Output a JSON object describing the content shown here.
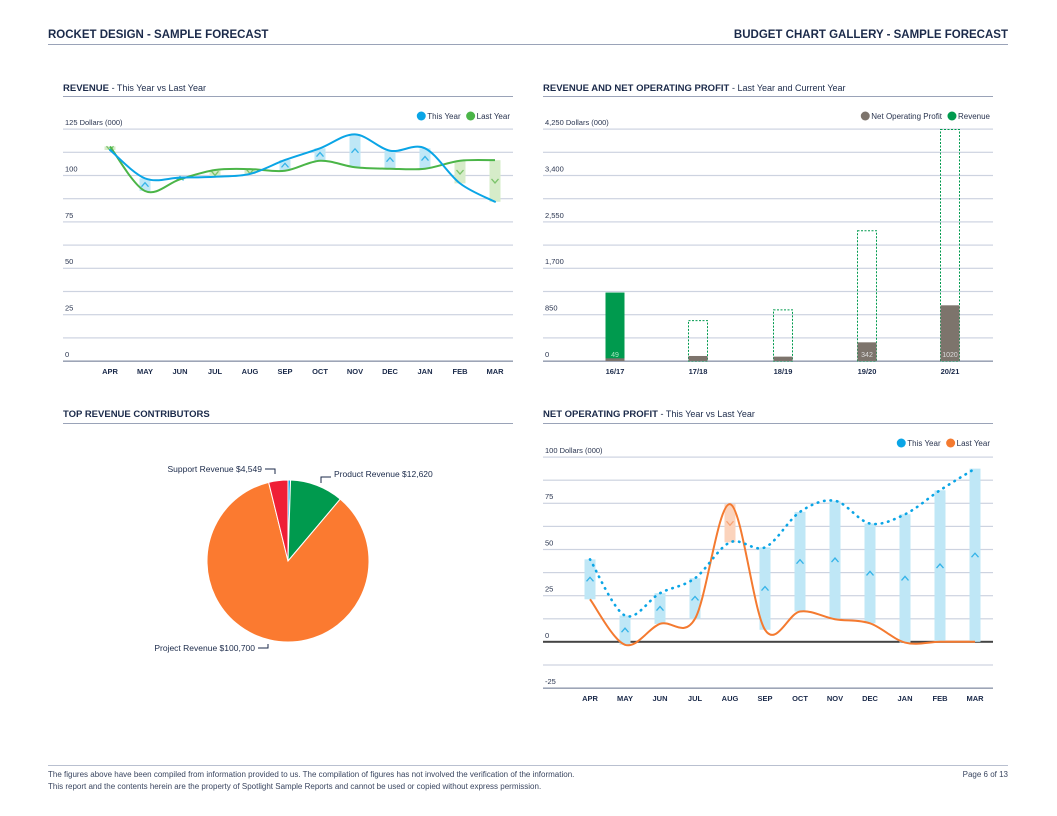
{
  "header": {
    "left": "ROCKET DESIGN - SAMPLE FORECAST",
    "right": "BUDGET CHART GALLERY - SAMPLE FORECAST"
  },
  "footer": {
    "line1": "The figures above have been compiled from information provided to us. The compilation of figures has not involved the verification of the information.",
    "line2": "This report and the contents herein are the property of Spotlight Sample Reports and cannot be used or copied without express permission.",
    "page": "Page 6 of 13"
  },
  "colors": {
    "this_year": "#0aa5e6",
    "last_year_green": "#4bb548",
    "revenue": "#009a4e",
    "nop": "#7d746c",
    "last_year_orange": "#f47a30",
    "support": "#ef1f36",
    "project": "#fb7a30",
    "product": "#009a4e",
    "other": "#0aa5e6"
  },
  "chart_data": [
    {
      "type": "line",
      "title": "REVENUE",
      "subtitle": "- This Year vs Last Year",
      "ylabel": "Dollars (000)",
      "ylim": [
        0,
        125
      ],
      "yticks": [
        "0",
        "25",
        "50",
        "75",
        "100",
        "125"
      ],
      "grid": true,
      "legend": "top-right",
      "categories": [
        "APR",
        "MAY",
        "JUN",
        "JUL",
        "AUG",
        "SEP",
        "OCT",
        "NOV",
        "DEC",
        "JAN",
        "FEB",
        "MAR"
      ],
      "series": [
        {
          "name": "This Year",
          "values": [
            113.7,
            98.4,
            98.8,
            99.3,
            100.8,
            108.3,
            114.6,
            122.1,
            113.3,
            114.6,
            95.7,
            85.8
          ]
        },
        {
          "name": "Last Year",
          "values": [
            115.6,
            91.6,
            97.9,
            102.9,
            103.4,
            102.5,
            107.9,
            104.4,
            103.6,
            103.6,
            107.9,
            108.2
          ]
        }
      ]
    },
    {
      "type": "bar",
      "title": "REVENUE AND NET OPERATING PROFIT",
      "subtitle": "- Last Year and Current Year",
      "ylabel": "Dollars (000)",
      "ylim": [
        0,
        4250
      ],
      "yticks": [
        "0",
        "850",
        "1,700",
        "2,550",
        "3,400",
        "4,250"
      ],
      "grid": true,
      "legend": "top-right",
      "categories": [
        "16/17",
        "17/18",
        "18/19",
        "19/20",
        "20/21"
      ],
      "series": [
        {
          "name": "Net Operating Profit",
          "values": [
            49,
            92,
            80,
            342,
            1020
          ],
          "labels": [
            "49",
            "",
            "",
            "342",
            "1020"
          ]
        },
        {
          "name": "Revenue",
          "values": [
            1254,
            740,
            936,
            2387,
            4241
          ]
        }
      ]
    },
    {
      "type": "pie",
      "title": "TOP REVENUE CONTRIBUTORS",
      "slices": [
        {
          "label": "",
          "value": 600
        },
        {
          "label": "Product Revenue $12,620",
          "value": 12620
        },
        {
          "label": "Project Revenue $100,700",
          "value": 100700
        },
        {
          "label": "Support Revenue $4,549",
          "value": 4549
        }
      ]
    },
    {
      "type": "line",
      "title": "NET OPERATING PROFIT",
      "subtitle": "- This Year vs Last Year",
      "ylabel": "Dollars (000)",
      "ylim": [
        -25,
        100
      ],
      "yticks": [
        "-25",
        "0",
        "25",
        "50",
        "75",
        "100"
      ],
      "grid": true,
      "legend": "top-right",
      "categories": [
        "APR",
        "MAY",
        "JUN",
        "JUL",
        "AUG",
        "SEP",
        "OCT",
        "NOV",
        "DEC",
        "JAN",
        "FEB",
        "MAR"
      ],
      "series": [
        {
          "name": "This Year",
          "values": [
            44.6,
            14.2,
            26.3,
            34.4,
            53.8,
            51.1,
            70.3,
            76.3,
            64,
            69,
            82,
            93.7
          ]
        },
        {
          "name": "Last Year",
          "values": [
            23,
            -1.6,
            9.7,
            12.5,
            74.5,
            6.5,
            16.4,
            12.2,
            10,
            -0.4,
            0,
            0
          ]
        }
      ]
    }
  ]
}
